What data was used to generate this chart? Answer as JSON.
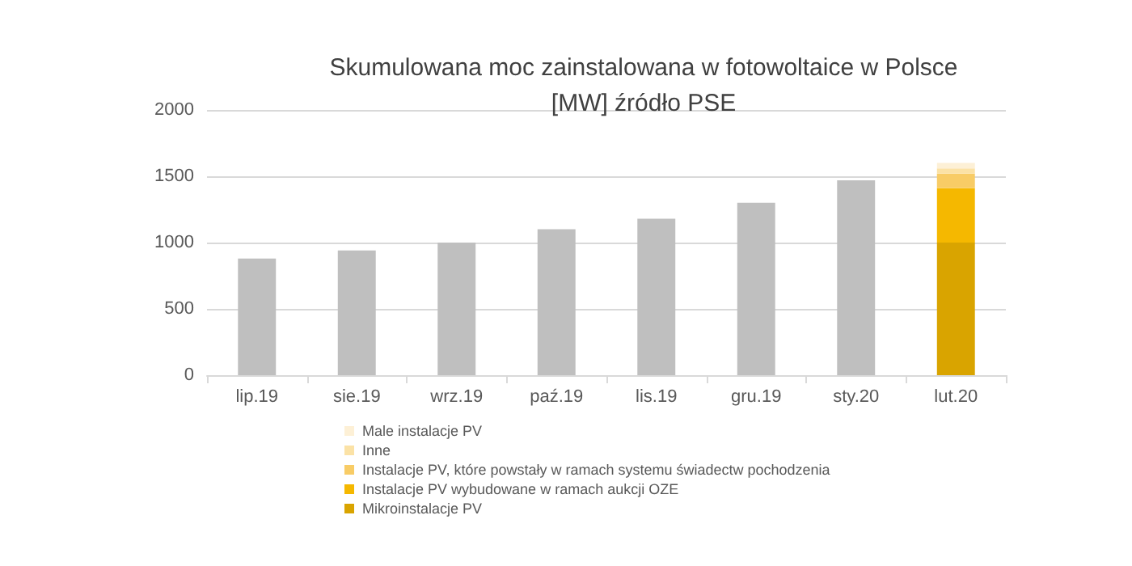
{
  "chart_data": {
    "type": "bar",
    "title": "Skumulowana moc zainstalowana w fotowoltaice w Polsce\n[MW] źródło PSE",
    "categories": [
      "lip.19",
      "sie.19",
      "wrz.19",
      "paź.19",
      "lis.19",
      "gru.19",
      "sty.20",
      "lut.20"
    ],
    "stacked": true,
    "series": [
      {
        "color": "#bfbfbf",
        "values": [
          880,
          940,
          1000,
          1100,
          1180,
          1300,
          1470,
          null
        ]
      },
      {
        "name": "Mikroinstalacje PV",
        "color": "#d9a400",
        "values": [
          null,
          null,
          null,
          null,
          null,
          null,
          null,
          1000
        ]
      },
      {
        "name": "Instalacje PV wybudowane w ramach aukcji OZE",
        "color": "#f5b800",
        "values": [
          null,
          null,
          null,
          null,
          null,
          null,
          null,
          410
        ]
      },
      {
        "name": "Instalacje PV, które powstały w ramach systemu świadectw pochodzenia",
        "color": "#f8cc66",
        "values": [
          null,
          null,
          null,
          null,
          null,
          null,
          null,
          110
        ]
      },
      {
        "name": "Inne",
        "color": "#fbe2a6",
        "values": [
          null,
          null,
          null,
          null,
          null,
          null,
          null,
          40
        ]
      },
      {
        "name": "Male instalacje PV",
        "color": "#fdf0d6",
        "values": [
          null,
          null,
          null,
          null,
          null,
          null,
          null,
          40
        ]
      }
    ],
    "ylim": [
      0,
      2000
    ],
    "yticks": [
      0,
      500,
      1000,
      1500,
      2000
    ],
    "grid": "y",
    "legend": "bottom"
  }
}
